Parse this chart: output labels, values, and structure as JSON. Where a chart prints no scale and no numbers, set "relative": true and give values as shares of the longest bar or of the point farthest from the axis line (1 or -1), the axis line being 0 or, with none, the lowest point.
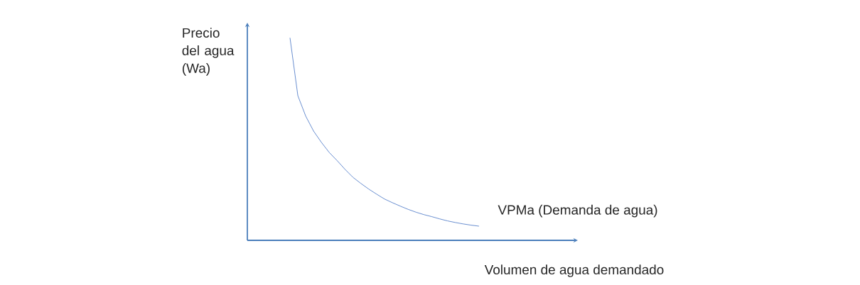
{
  "chart_data": {
    "type": "line",
    "relative": true,
    "xlabel": "Volumen de agua demandado",
    "ylabel": "Precio del agua (Wa)",
    "categories": [
      null,
      null,
      null,
      null,
      null,
      null,
      null,
      null,
      null,
      null,
      null,
      null,
      null,
      null,
      null,
      null,
      null,
      null,
      null,
      null,
      null,
      null,
      null,
      null,
      null
    ],
    "series": [
      {
        "name": "VPMa (Demanda de agua)",
        "color": "#4472c4",
        "values": [
          1,
          0.714,
          0.613,
          0.539,
          0.483,
          0.433,
          0.393,
          0.35,
          0.311,
          0.281,
          0.253,
          0.228,
          0.204,
          0.186,
          0.169,
          0.153,
          0.139,
          0.127,
          0.117,
          0.106,
          0.096,
          0.088,
          0.081,
          0.075,
          0.07
        ]
      }
    ]
  }
}
